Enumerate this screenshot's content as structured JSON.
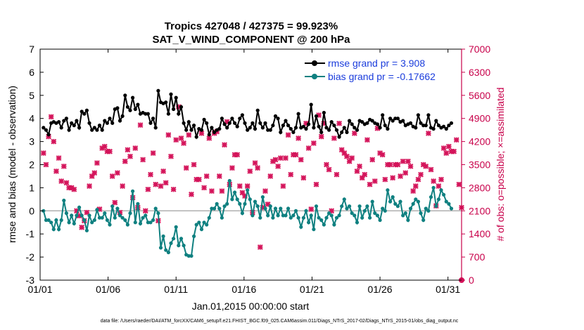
{
  "chart_data": {
    "type": "line",
    "title": "Tropics 427048 / 427375 = 99.923%",
    "subtitle": "SAT_V_WIND_COMPONENT @ 200 hPa",
    "xlabel": "Jan.01,2015 00:00:00 start",
    "ylabel": "rmse and bias (model - observation)",
    "ylabel_right": "# of obs: o=possible; ×=assimilated",
    "footer": "data file: /Users/raeder/DAI/ATM_forcXX/CAM6_setup/f.e21.FHIST_BGC.f09_025.CAM6assim.011/Diags_NTrS_2017-02/Diags_NTrS_2015-01/obs_diag_output.nc",
    "xlim": [
      1,
      32
    ],
    "ylim": [
      -3,
      7
    ],
    "ylim_right": [
      0,
      7000
    ],
    "x_ticks": [
      1,
      6,
      11,
      16,
      21,
      26,
      31
    ],
    "x_tick_labels": [
      "01/01",
      "01/06",
      "01/11",
      "01/16",
      "01/21",
      "01/26",
      "01/31"
    ],
    "y_ticks": [
      -3,
      -2,
      -1,
      0,
      1,
      2,
      3,
      4,
      5,
      6,
      7
    ],
    "y_right_ticks": [
      0,
      700,
      1400,
      2100,
      2800,
      3500,
      4200,
      4900,
      5600,
      6300,
      7000
    ],
    "zero_line": 0,
    "series": [
      {
        "name": "rmse",
        "legend": "rmse grand pr = 3.908",
        "color": "#000000",
        "axis": "left",
        "values": [
          3.6,
          3.5,
          3.3,
          3.8,
          3.85,
          3.8,
          3.85,
          3.6,
          3.9,
          4.0,
          3.5,
          3.8,
          3.7,
          3.9,
          3.6,
          4.3,
          4.2,
          4.35,
          3.8,
          3.5,
          3.6,
          3.5,
          3.7,
          3.5,
          3.9,
          3.8,
          4.0,
          3.8,
          4.4,
          4.45,
          3.9,
          4.1,
          5.0,
          4.5,
          4.35,
          4.9,
          4.4,
          4.6,
          4.2,
          4.25,
          4.2,
          4.2,
          3.8,
          4.0,
          3.6,
          5.2,
          4.7,
          4.65,
          4.7,
          4.2,
          5.05,
          4.4,
          4.9,
          4.2,
          4.5,
          3.8,
          3.5,
          3.85,
          3.5,
          3.7,
          3.2,
          3.55,
          3.5,
          3.95,
          3.8,
          3.3,
          3.6,
          3.4,
          3.5,
          3.55,
          4.0,
          3.75,
          3.6,
          3.8,
          4.0,
          3.8,
          3.65,
          4.0,
          4.15,
          3.8,
          3.5,
          3.6,
          3.8,
          3.55,
          4.35,
          3.8,
          3.6,
          3.8,
          3.5,
          3.5,
          3.7,
          4.1,
          4.0,
          3.4,
          3.7,
          3.9,
          3.7,
          3.55,
          3.4,
          3.6,
          4.2,
          3.6,
          3.65,
          3.55,
          3.75,
          4.6,
          3.6,
          4.1,
          3.65,
          3.4,
          4.25,
          3.6,
          3.5,
          3.85,
          3.7,
          3.5,
          3.2,
          3.4,
          3.6,
          3.4,
          3.9,
          3.75,
          3.6,
          3.5,
          3.9,
          3.85,
          3.75,
          3.8,
          3.95,
          3.9,
          3.8,
          3.75,
          3.6,
          4.15,
          3.7,
          3.55,
          4.0,
          3.9,
          4.0,
          4.0,
          3.85,
          3.9,
          3.7,
          3.75,
          3.8,
          3.65,
          3.6,
          4.15,
          3.8,
          3.7,
          3.7,
          4.15,
          3.6,
          3.55,
          3.9,
          3.7,
          3.6,
          3.65,
          3.55,
          3.7,
          3.8
        ]
      },
      {
        "name": "bias",
        "legend": "bias grand pr = -0.17662",
        "color": "#0f8080",
        "axis": "left",
        "values": [
          0,
          -0.4,
          -0.4,
          -0.5,
          -0.8,
          -0.4,
          -0.8,
          -0.4,
          0.45,
          -0.1,
          -0.5,
          -0.2,
          -0.55,
          -0.2,
          0.15,
          -0.2,
          -0.4,
          -0.85,
          -0.2,
          -0.5,
          -0.4,
          0.05,
          -0.3,
          -0.3,
          -0.1,
          -0.4,
          -0.6,
          0.2,
          -0.3,
          0.1,
          -0.2,
          -0.3,
          -0.4,
          -0.6,
          -0.1,
          0.85,
          -0.5,
          0.3,
          -0.55,
          -0.3,
          -0.2,
          -0.5,
          -0.5,
          -0.4,
          0.1,
          -0.1,
          -1.6,
          -1.1,
          -1.7,
          -1.8,
          -1.4,
          -1.2,
          -0.7,
          -1.5,
          -1.2,
          -1.5,
          -1.9,
          -1.95,
          -1.95,
          -1.1,
          -0.6,
          -0.5,
          -0.8,
          -0.5,
          -0.6,
          -0.3,
          0.1,
          0.1,
          0.3,
          0.1,
          -0.3,
          0.2,
          0.3,
          1.3,
          0.5,
          0.8,
          0.5,
          0.3,
          -0.1,
          0.3,
          0.9,
          0.5,
          -0.2,
          0.4,
          0.2,
          -0.3,
          0.6,
          0.1,
          -0.2,
          0.2,
          -0.3,
          0.1,
          -0.2,
          0.1,
          -0.2,
          -0.2,
          0.1,
          -0.3,
          -0.2,
          0.0,
          -0.3,
          -0.7,
          -0.3,
          0.0,
          -0.5,
          -0.2,
          -0.8,
          0.2,
          -0.3,
          -0.4,
          -0.6,
          -0.3,
          -0.1,
          -0.2,
          -0.6,
          -0.3,
          -0.2,
          0.2,
          0.5,
          0.1,
          0.2,
          -0.1,
          -0.2,
          -0.5,
          0.2,
          -0.3,
          0.0,
          0.2,
          -0.3,
          0.4,
          -0.1,
          -0.2,
          -0.4,
          0.1,
          0.0,
          0.9,
          0.4,
          0.6,
          0.3,
          0.2,
          0.4,
          -0.2,
          -0.1,
          -0.4,
          0.1,
          0.3,
          0.5,
          0.4,
          -0.1,
          -0.4,
          0.1,
          0.0,
          0.6,
          1.0,
          0.2,
          0.5,
          0.9,
          0.7,
          0.4,
          0.3,
          0.1
        ]
      },
      {
        "name": "obs-assimilated",
        "color": "#d4145a",
        "axis": "right",
        "marker": "x",
        "values": [
          3850,
          3500,
          4350,
          4950,
          4200,
          3300,
          3700,
          3000,
          3450,
          2950,
          2800,
          2800,
          2750,
          2100,
          1950,
          1600,
          1800,
          2050,
          2850,
          3150,
          3250,
          3550,
          2150,
          4000,
          4050,
          3900,
          3900,
          3150,
          2350,
          3250,
          2050,
          2850,
          3600,
          3950,
          3750,
          2500,
          4000,
          2200,
          4700,
          3650,
          2100,
          2750,
          3200,
          3850,
          2900,
          1800,
          2850,
          3300,
          2950,
          4400,
          3750,
          2750,
          4250,
          5250,
          4300,
          4150,
          3400,
          4400,
          2600,
          3500,
          3050,
          3050,
          4450,
          2800,
          3150,
          4300,
          2700,
          4450,
          4500,
          3150,
          2700,
          4100,
          4800,
          2900,
          3400,
          3800,
          3800,
          2850,
          2650,
          2550,
          2850,
          3300,
          2050,
          3550,
          3400,
          1000,
          2200,
          2700,
          2300,
          3150,
          3600,
          3650,
          3450,
          3700,
          2850,
          3700,
          4400,
          3200,
          3800,
          3800,
          4300,
          3650,
          3100,
          4750,
          4000,
          2150,
          4150,
          2900,
          5000,
          4350,
          4750,
          3500,
          3350,
          2100,
          4300,
          3200,
          4750,
          3950,
          3850,
          3750,
          3600,
          3700,
          4450,
          3300,
          3450,
          3100,
          3200,
          4250,
          2900,
          3650,
          3000,
          4600,
          3850,
          3800,
          3050,
          3500,
          3500,
          3100,
          3500,
          3500,
          3150,
          3600,
          3250,
          3600,
          3450,
          2700,
          2850,
          3050,
          3200,
          3500,
          3450,
          4450,
          3350,
          3000,
          2250,
          2850,
          3050,
          4000,
          3850,
          4050,
          3900,
          3900,
          4250,
          2900,
          2200
        ]
      }
    ]
  }
}
